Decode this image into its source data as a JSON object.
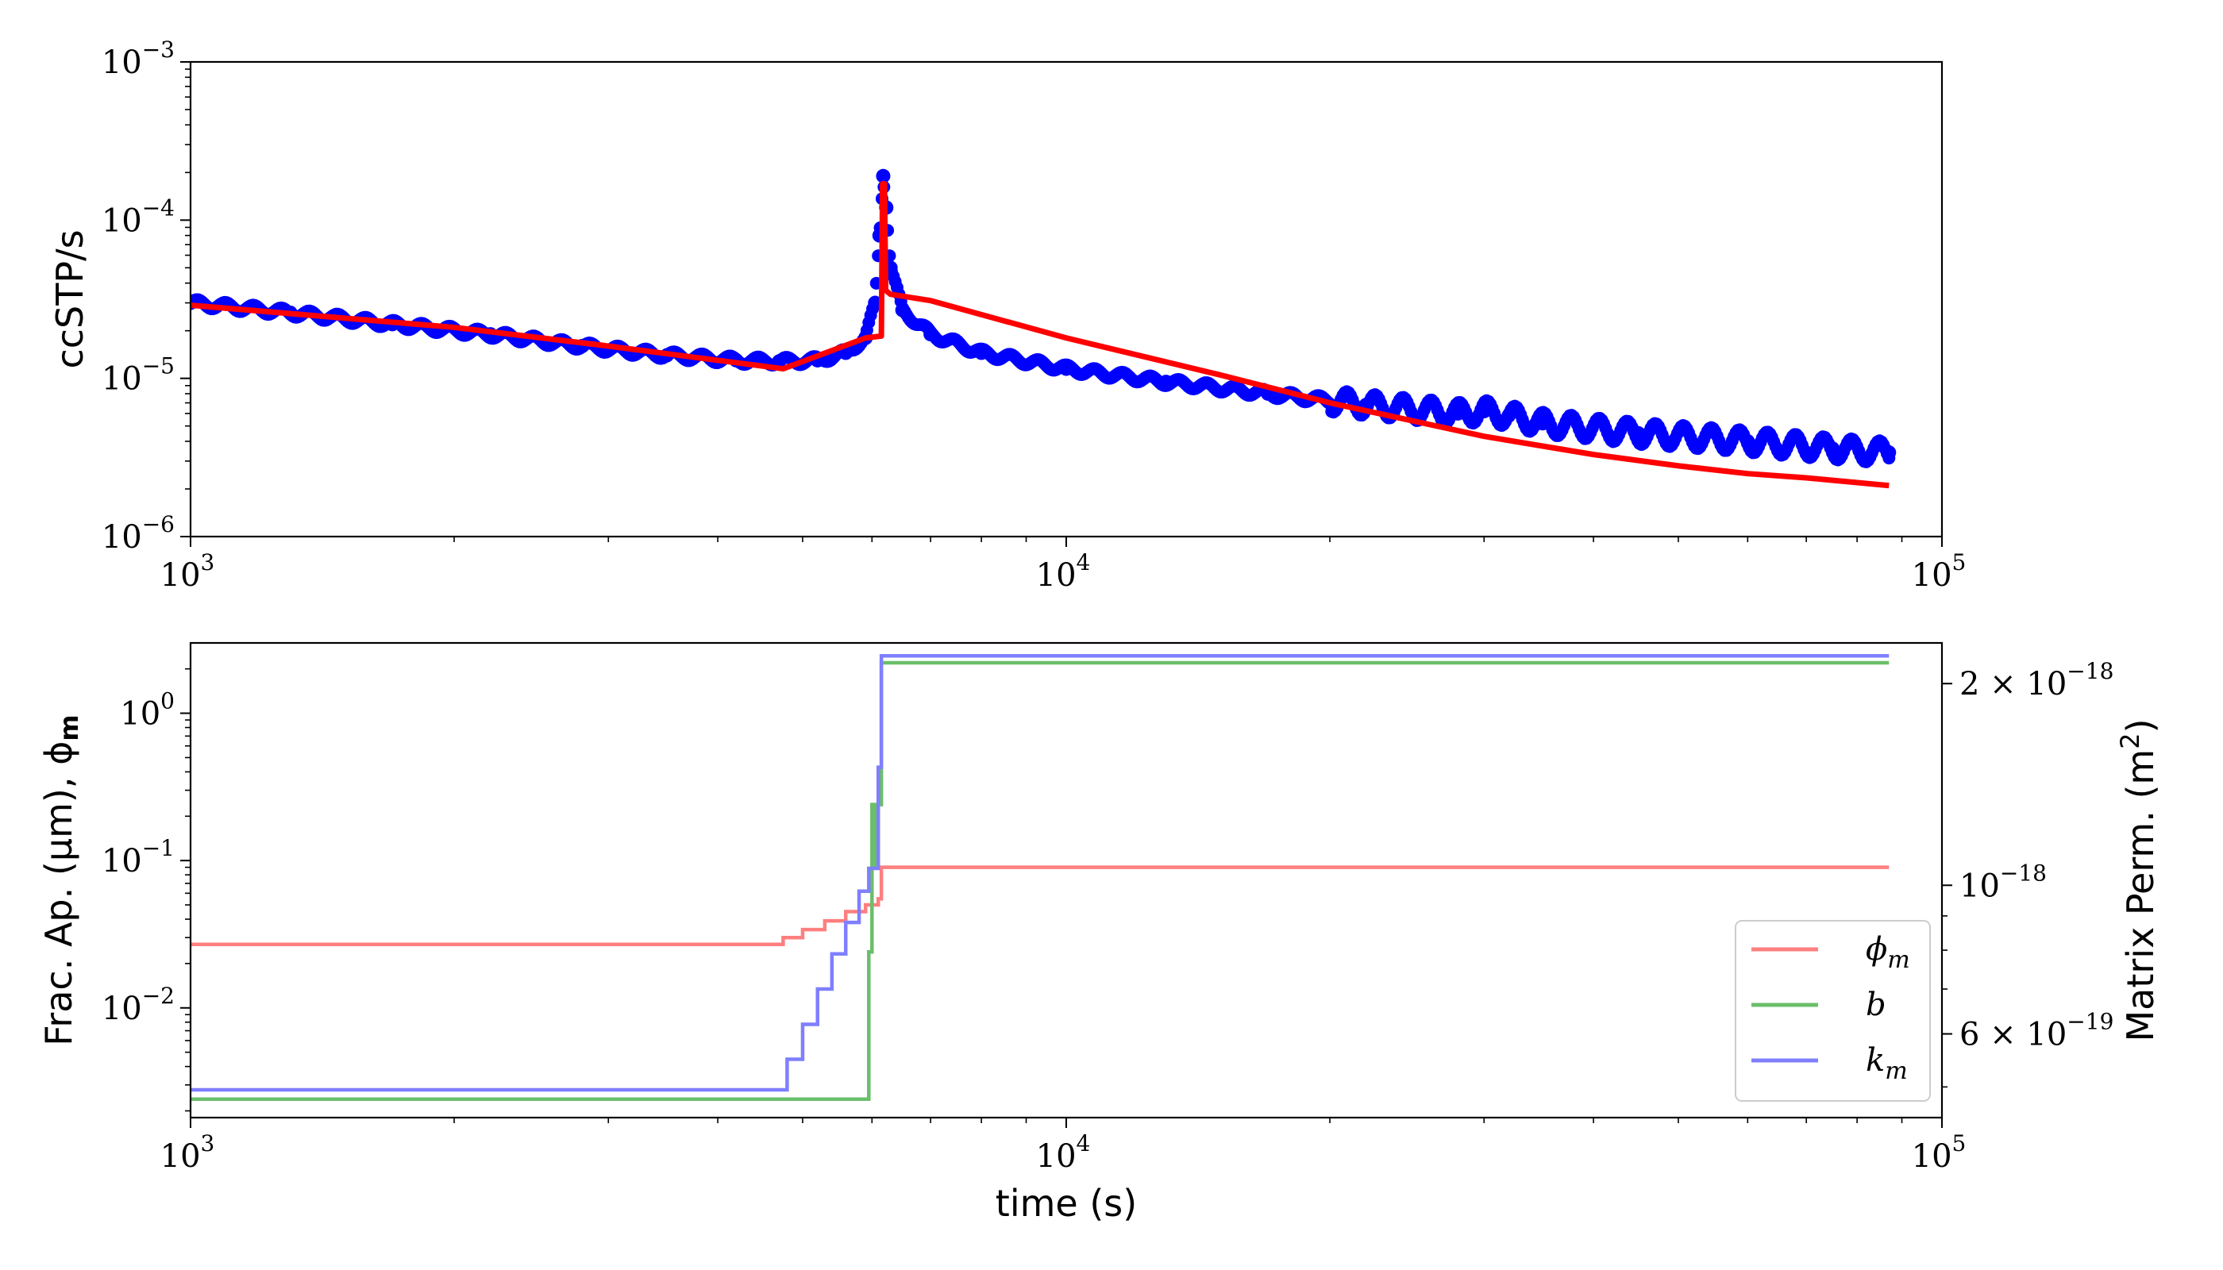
{
  "chart_data": [
    {
      "type": "scatter",
      "ylabel": "ccSTP/s",
      "xscale": "log",
      "yscale": "log",
      "xlim": [
        1000,
        100000
      ],
      "ylim": [
        1e-06,
        0.001
      ],
      "x_ticks": [
        {
          "value": 1000,
          "base": "10",
          "exp": "3"
        },
        {
          "value": 10000,
          "base": "10",
          "exp": "4"
        },
        {
          "value": 100000,
          "base": "10",
          "exp": "5"
        }
      ],
      "y_ticks": [
        {
          "value": 1e-06,
          "base": "10",
          "exp": "−6"
        },
        {
          "value": 1e-05,
          "base": "10",
          "exp": "−5"
        },
        {
          "value": 0.0001,
          "base": "10",
          "exp": "−4"
        },
        {
          "value": 0.001,
          "base": "10",
          "exp": "−3"
        }
      ],
      "series": [
        {
          "kind": "scatter",
          "color": "#0000ff",
          "x": [
            1000,
            1300,
            1700,
            2200,
            2800,
            3500,
            4200,
            4700,
            5200,
            5600,
            5900,
            6050,
            6120,
            6180,
            6230,
            6300,
            6500,
            7000,
            8000,
            10000,
            13000,
            17000,
            22000,
            28000,
            30000,
            32000,
            35000,
            45000,
            60000,
            75000,
            87000
          ],
          "y": [
            3e-05,
            2.6e-05,
            2.2e-05,
            1.9e-05,
            1.6e-05,
            1.4e-05,
            1.3e-05,
            1.28e-05,
            1.3e-05,
            1.45e-05,
            1.8e-05,
            3e-05,
            8e-05,
            0.00019,
            0.00012,
            5e-05,
            2.7e-05,
            1.9e-05,
            1.45e-05,
            1.15e-05,
            9.5e-06,
            8e-06,
            6.8e-06,
            6e-06,
            6.2e-06,
            5.8e-06,
            5.2e-06,
            4.5e-06,
            4e-06,
            3.6e-06,
            3.4e-06
          ]
        },
        {
          "kind": "line",
          "color": "#ff0000",
          "x": [
            1000,
            2000,
            3000,
            4000,
            4750,
            5900,
            6150,
            6170,
            6200,
            6220,
            6300,
            7000,
            10000,
            15000,
            20000,
            30000,
            40000,
            50000,
            60000,
            70000,
            87000
          ],
          "y": [
            2.9e-05,
            2.1e-05,
            1.6e-05,
            1.3e-05,
            1.15e-05,
            1.8e-05,
            1.85e-05,
            0.00017,
            0.00017,
            3.6e-05,
            3.4e-05,
            3.1e-05,
            1.8e-05,
            1.05e-05,
            7e-06,
            4.3e-06,
            3.3e-06,
            2.8e-06,
            2.5e-06,
            2.35e-06,
            2.1e-06
          ]
        }
      ]
    },
    {
      "type": "line",
      "xlabel": "time (s)",
      "ylabel": "Frac. Ap. (μm), ϕ",
      "ylabel_sub": "m",
      "y2label": "Matrix Perm. (m",
      "y2label_sup": "2",
      "y2label_end": ")",
      "xscale": "log",
      "yscale": "log",
      "y2scale": "log",
      "xlim": [
        1000,
        100000
      ],
      "ylim": [
        0.0018,
        3.0
      ],
      "y2lim": [
        4.5e-19,
        2.3e-18
      ],
      "legend": "lower-right",
      "x_ticks": [
        {
          "value": 1000,
          "base": "10",
          "exp": "3"
        },
        {
          "value": 10000,
          "base": "10",
          "exp": "4"
        },
        {
          "value": 100000,
          "base": "10",
          "exp": "5"
        }
      ],
      "y_ticks": [
        {
          "value": 0.01,
          "base": "10",
          "exp": "−2"
        },
        {
          "value": 0.1,
          "base": "10",
          "exp": "−1"
        },
        {
          "value": 1.0,
          "base": "10",
          "exp": "0"
        }
      ],
      "y2_ticks": [
        {
          "value": 6e-19,
          "base": "6 × 10",
          "exp": "−19"
        },
        {
          "value": 1e-18,
          "base": "10",
          "exp": "−18"
        },
        {
          "value": 2e-18,
          "base": "2 × 10",
          "exp": "−18"
        }
      ],
      "series": [
        {
          "name": "ϕ",
          "name_sub": "m",
          "axis": "left",
          "color": "#ff7f7f",
          "x": [
            1000,
            4600,
            4750,
            5000,
            5300,
            5600,
            5900,
            6100,
            6150,
            87000
          ],
          "y": [
            0.027,
            0.027,
            0.03,
            0.034,
            0.039,
            0.045,
            0.05,
            0.055,
            0.09,
            0.09
          ]
        },
        {
          "name": "b",
          "axis": "left",
          "color": "#6abf6a",
          "x": [
            1000,
            5900,
            5950,
            6000,
            6050,
            6100,
            6150,
            87000
          ],
          "y": [
            0.0024,
            0.0024,
            0.024,
            0.24,
            0.09,
            0.24,
            2.2,
            2.2
          ]
        },
        {
          "name": "k",
          "name_sub": "m",
          "axis": "right",
          "color": "#7f7fff",
          "x": [
            1000,
            4650,
            4800,
            5000,
            5200,
            5400,
            5600,
            5800,
            5950,
            6100,
            6150,
            87000
          ],
          "y": [
            4.95e-19,
            4.95e-19,
            5.5e-19,
            6.2e-19,
            7e-19,
            7.9e-19,
            8.8e-19,
            9.8e-19,
            1.06e-18,
            1.5e-18,
            2.2e-18,
            2.2e-18
          ]
        }
      ]
    }
  ]
}
